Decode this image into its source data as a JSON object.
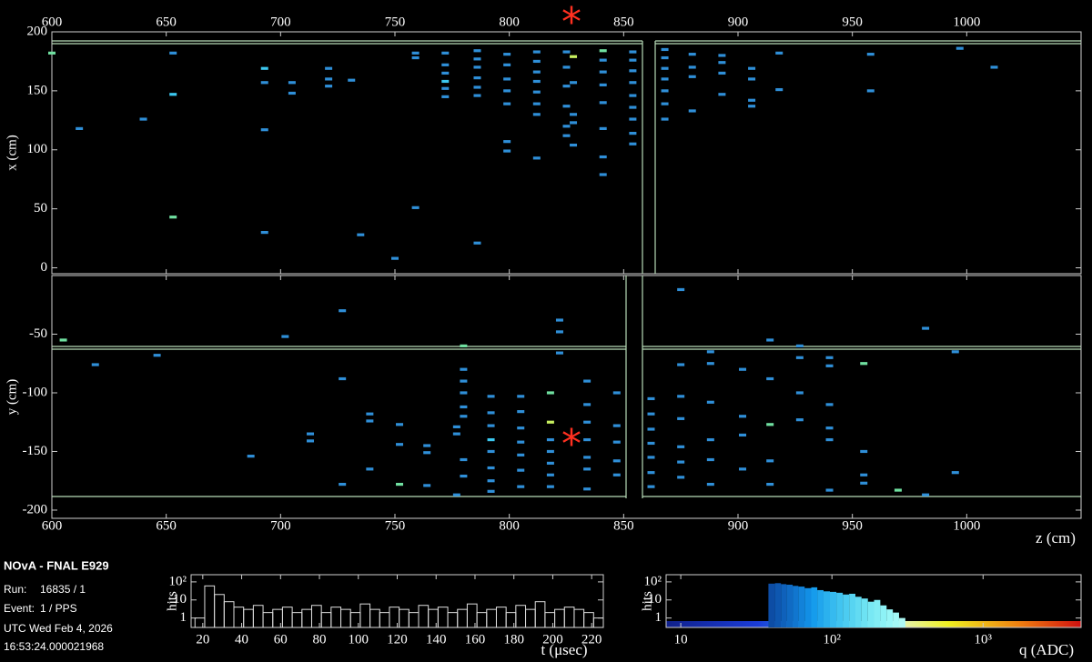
{
  "info": {
    "experiment": "NOvA - FNAL E929",
    "run_label": "Run:",
    "run": "16835 / 1",
    "event_label": "Event:",
    "event": "1 / PPS",
    "date": "UTC Wed Feb 4, 2026",
    "time": "16:53:24.000021968"
  },
  "chart_data": [
    {
      "type": "scatter",
      "ylabel": "x (cm)",
      "xaxis_position": "top",
      "xlim": [
        600,
        1050
      ],
      "ylim": [
        -5,
        200
      ],
      "xticks": [
        600,
        650,
        700,
        750,
        800,
        850,
        900,
        950,
        1000
      ],
      "yticks": [
        0,
        50,
        100,
        150,
        200
      ],
      "series": [
        {
          "color": "#2f8fd8",
          "x": [
            612,
            640,
            653,
            693,
            693,
            693,
            705,
            705,
            721,
            721,
            721,
            731,
            735,
            750,
            759,
            759,
            759,
            772,
            772,
            772,
            772,
            772,
            786,
            786,
            786,
            786,
            786,
            786,
            786,
            799,
            799,
            799,
            799,
            799,
            799,
            799,
            812,
            812,
            812,
            812,
            812,
            812,
            812,
            812,
            825,
            825,
            825,
            825,
            825,
            825,
            828,
            828,
            828,
            828,
            841,
            841,
            841,
            841,
            841,
            841,
            841,
            854,
            854,
            854,
            854,
            854,
            854,
            854,
            854,
            854,
            868,
            868,
            868,
            868,
            868,
            868,
            868,
            880,
            880,
            880,
            880,
            893,
            893,
            893,
            893,
            906,
            906,
            906,
            906,
            918,
            918,
            958,
            958,
            997,
            1012
          ],
          "values": [
            118,
            126,
            182,
            157,
            117,
            30,
            157,
            148,
            169,
            160,
            154,
            159,
            28,
            8,
            182,
            178,
            51,
            182,
            172,
            165,
            152,
            145,
            184,
            177,
            170,
            161,
            153,
            146,
            21,
            181,
            172,
            160,
            150,
            139,
            107,
            99,
            183,
            175,
            166,
            158,
            149,
            139,
            130,
            93,
            183,
            170,
            154,
            137,
            120,
            112,
            157,
            130,
            123,
            104,
            176,
            166,
            155,
            140,
            118,
            94,
            79,
            183,
            176,
            167,
            157,
            146,
            136,
            126,
            114,
            105,
            185,
            178,
            169,
            160,
            150,
            139,
            126,
            181,
            170,
            162,
            133,
            180,
            174,
            165,
            147,
            169,
            160,
            142,
            137,
            182,
            151,
            181,
            150,
            186,
            170
          ]
        },
        {
          "color": "#3cc8f0",
          "x": [
            653,
            693,
            772
          ],
          "values": [
            147,
            169,
            158
          ]
        },
        {
          "color": "#70e0a0",
          "x": [
            600,
            653,
            841
          ],
          "values": [
            182,
            43,
            184
          ]
        },
        {
          "color": "#c8f060",
          "x": [
            828
          ],
          "values": [
            179
          ]
        }
      ]
    },
    {
      "type": "scatter",
      "ylabel": "y (cm)",
      "xlabel": "z (cm)",
      "xaxis_position": "bottom",
      "xlim": [
        600,
        1050
      ],
      "ylim": [
        -207,
        0
      ],
      "xticks": [
        600,
        650,
        700,
        750,
        800,
        850,
        900,
        950,
        1000
      ],
      "yticks": [
        -50,
        -100,
        -150,
        -200
      ],
      "series": [
        {
          "color": "#2f8fd8",
          "x": [
            619,
            646,
            687,
            702,
            713,
            713,
            727,
            727,
            727,
            739,
            739,
            739,
            752,
            752,
            764,
            764,
            764,
            777,
            777,
            777,
            780,
            780,
            780,
            780,
            780,
            780,
            780,
            792,
            792,
            792,
            792,
            792,
            792,
            792,
            805,
            805,
            805,
            805,
            805,
            805,
            805,
            818,
            818,
            818,
            818,
            818,
            822,
            822,
            822,
            834,
            834,
            834,
            834,
            834,
            834,
            834,
            847,
            847,
            847,
            847,
            847,
            862,
            862,
            862,
            862,
            862,
            862,
            862,
            875,
            875,
            875,
            875,
            875,
            875,
            875,
            888,
            888,
            888,
            888,
            888,
            888,
            902,
            902,
            902,
            902,
            914,
            914,
            914,
            914,
            927,
            927,
            927,
            927,
            940,
            940,
            940,
            940,
            940,
            940,
            955,
            955,
            955,
            982,
            982,
            995,
            995
          ],
          "values": [
            -76,
            -68,
            -154,
            -52,
            -135,
            -141,
            -88,
            -30,
            -178,
            -118,
            -124,
            -165,
            -127,
            -144,
            -145,
            -151,
            -179,
            -129,
            -135,
            -187,
            -80,
            -90,
            -100,
            -112,
            -120,
            -157,
            -171,
            -103,
            -117,
            -128,
            -150,
            -164,
            -175,
            -184,
            -103,
            -116,
            -130,
            -142,
            -153,
            -166,
            -180,
            -140,
            -150,
            -160,
            -170,
            -180,
            -48,
            -38,
            -66,
            -90,
            -110,
            -125,
            -140,
            -155,
            -165,
            -182,
            -100,
            -128,
            -142,
            -158,
            -170,
            -105,
            -118,
            -131,
            -143,
            -155,
            -168,
            -180,
            -12,
            -76,
            -103,
            -122,
            -146,
            -159,
            -172,
            -65,
            -75,
            -108,
            -140,
            -157,
            -178,
            -80,
            -120,
            -136,
            -165,
            -55,
            -88,
            -158,
            -178,
            -60,
            -70,
            -100,
            -123,
            -70,
            -77,
            -110,
            -130,
            -140,
            -183,
            -150,
            -170,
            -177,
            -45,
            -187,
            -65,
            -168
          ]
        },
        {
          "color": "#3cc8f0",
          "x": [
            792
          ],
          "values": [
            -140
          ]
        },
        {
          "color": "#70e0a0",
          "x": [
            605,
            752,
            780,
            818,
            914,
            955,
            970
          ],
          "values": [
            -55,
            -178,
            -60,
            -100,
            -127,
            -75,
            -183
          ]
        },
        {
          "color": "#c8f060",
          "x": [
            818
          ],
          "values": [
            -125
          ]
        }
      ]
    },
    {
      "type": "histogram",
      "ylabel": "hits",
      "xlabel": "t (μsec)",
      "ylog": true,
      "color": "#dddddd",
      "xlim": [
        14,
        226
      ],
      "ylim": [
        0.3,
        250
      ],
      "xticks": [
        20,
        40,
        60,
        80,
        100,
        120,
        140,
        160,
        180,
        200,
        220
      ],
      "yticks": [
        1,
        10,
        {
          "value": 100,
          "label": "10²"
        }
      ],
      "bins": [
        16,
        21,
        26,
        31,
        36,
        41,
        46,
        51,
        56,
        61,
        66,
        71,
        76,
        81,
        86,
        91,
        96,
        101,
        106,
        111,
        116,
        121,
        126,
        131,
        136,
        141,
        146,
        151,
        156,
        161,
        166,
        171,
        176,
        181,
        186,
        191,
        196,
        201,
        206,
        211,
        216,
        221,
        226
      ],
      "values": [
        1,
        60,
        20,
        8,
        4,
        3,
        5,
        2,
        3,
        4,
        2,
        3,
        5,
        2,
        4,
        3,
        2,
        6,
        3,
        2,
        4,
        3,
        2,
        5,
        3,
        4,
        2,
        3,
        6,
        2,
        3,
        4,
        2,
        5,
        3,
        8,
        2,
        3,
        4,
        3,
        2,
        1
      ]
    },
    {
      "type": "histogram",
      "ylabel": "hits",
      "xlabel": "q (ADC)",
      "xlog": true,
      "ylog": true,
      "colormap": true,
      "xlim": [
        8,
        4450
      ],
      "ylim": [
        0.3,
        250
      ],
      "xticks": [
        10,
        {
          "value": 100,
          "label": "10²"
        },
        {
          "value": 1000,
          "label": "10³"
        }
      ],
      "yticks": [
        1,
        10,
        {
          "value": 100,
          "label": "10²"
        }
      ],
      "bins": [
        38,
        42,
        46,
        50,
        55,
        60,
        66,
        73,
        80,
        88,
        97,
        107,
        118,
        130,
        143,
        157,
        173,
        190,
        209,
        230,
        253,
        278,
        306
      ],
      "values": [
        80,
        85,
        75,
        70,
        60,
        55,
        45,
        50,
        35,
        30,
        28,
        25,
        20,
        22,
        15,
        12,
        8,
        10,
        5,
        3,
        2,
        1
      ]
    }
  ]
}
